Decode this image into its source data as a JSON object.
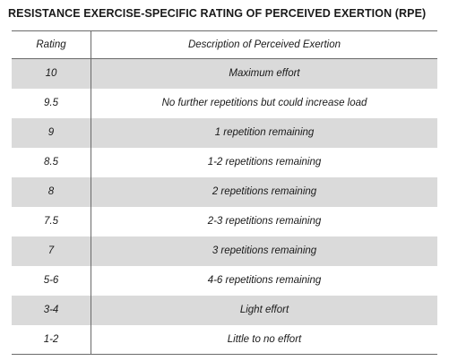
{
  "title": "RESISTANCE EXERCISE-SPECIFIC RATING OF PERCEIVED EXERTION (RPE)",
  "table": {
    "headers": {
      "rating": "Rating",
      "description": "Description of Perceived Exertion"
    },
    "rows": [
      {
        "rating": "10",
        "description": "Maximum effort"
      },
      {
        "rating": "9.5",
        "description": "No further repetitions but could increase load"
      },
      {
        "rating": "9",
        "description": "1 repetition remaining"
      },
      {
        "rating": "8.5",
        "description": "1-2 repetitions remaining"
      },
      {
        "rating": "8",
        "description": "2 repetitions remaining"
      },
      {
        "rating": "7.5",
        "description": "2-3 repetitions remaining"
      },
      {
        "rating": "7",
        "description": "3 repetitions remaining"
      },
      {
        "rating": "5-6",
        "description": "4-6 repetitions remaining"
      },
      {
        "rating": "3-4",
        "description": "Light effort"
      },
      {
        "rating": "1-2",
        "description": "Little to no effort"
      }
    ]
  }
}
